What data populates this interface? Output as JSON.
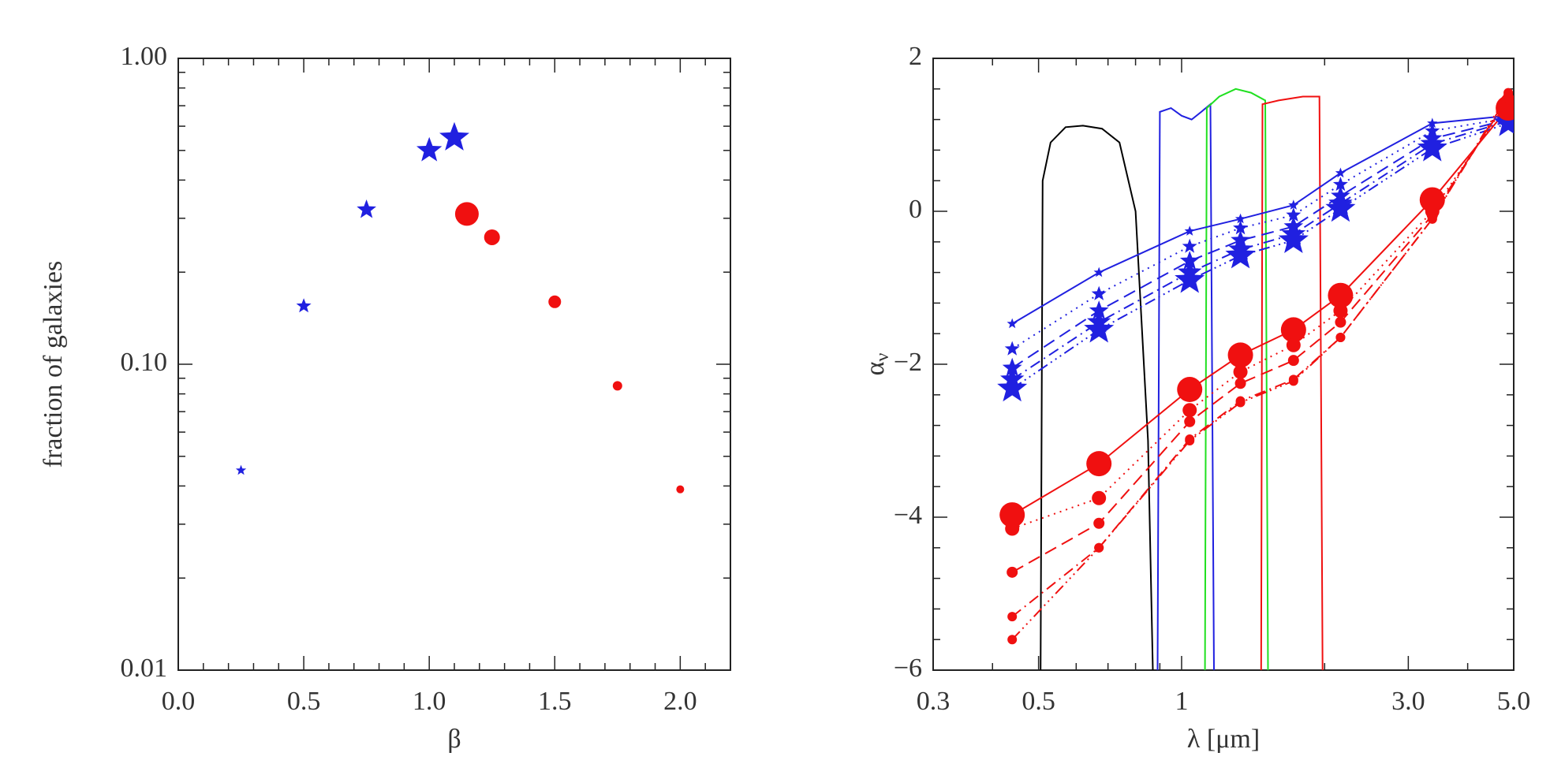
{
  "chart_data": [
    {
      "type": "scatter",
      "xlabel": "β",
      "ylabel": "fraction of galaxies",
      "xlim": [
        0,
        2.2
      ],
      "ylim": [
        0.01,
        1
      ],
      "ylog": true,
      "xticks": [
        {
          "value": 0,
          "label": "0.0"
        },
        {
          "value": 0.5,
          "label": "0.5"
        },
        {
          "value": 1,
          "label": "1.0"
        },
        {
          "value": 1.5,
          "label": "1.5"
        },
        {
          "value": 2,
          "label": "2.0"
        }
      ],
      "yticks": [
        {
          "value": 0.01,
          "label": "0.01"
        },
        {
          "value": 0.1,
          "label": "0.10"
        },
        {
          "value": 1,
          "label": "1.00"
        }
      ],
      "series": [
        {
          "color": "#2020e0",
          "marker": "star",
          "x": [
            0.25,
            0.5,
            0.75,
            1.0,
            1.1
          ],
          "values": [
            0.045,
            0.155,
            0.32,
            0.5,
            0.55
          ],
          "marker_sizes": [
            7,
            10,
            13,
            17,
            20
          ]
        },
        {
          "color": "#f01010",
          "marker": "circle",
          "x": [
            1.15,
            1.25,
            1.5,
            1.75,
            2.0
          ],
          "values": [
            0.31,
            0.26,
            0.16,
            0.085,
            0.039
          ],
          "marker_sizes": [
            15,
            10,
            8,
            6,
            5
          ]
        }
      ]
    },
    {
      "type": "line",
      "xlabel": "λ   [μm]",
      "ylabel": "α",
      "ylabel_sub": "ν",
      "xlim": [
        0.3,
        5.0
      ],
      "ylim": [
        -6,
        2
      ],
      "xlog": true,
      "xticks": [
        0.3,
        0.5,
        1,
        {
          "value": 3,
          "label": "3.0"
        },
        {
          "value": 5,
          "label": "5.0"
        }
      ],
      "yticks": [
        {
          "value": -6,
          "label": "−6"
        },
        {
          "value": -4,
          "label": "−4"
        },
        {
          "value": -2,
          "label": "−2"
        },
        0,
        2
      ],
      "x": [
        0.44,
        0.67,
        1.04,
        1.33,
        1.72,
        2.16,
        3.37,
        4.87
      ],
      "series": [
        {
          "color": "#2020e0",
          "marker": "star",
          "marker_size": 7,
          "dash": "solid",
          "values": [
            -1.47,
            -0.8,
            -0.26,
            -0.1,
            0.08,
            0.5,
            1.15,
            1.25
          ]
        },
        {
          "color": "#2020e0",
          "marker": "star",
          "marker_size": 10,
          "dash": "dotted",
          "values": [
            -1.8,
            -1.08,
            -0.46,
            -0.22,
            -0.05,
            0.35,
            1.05,
            1.22
          ]
        },
        {
          "color": "#2020e0",
          "marker": "star",
          "marker_size": 13,
          "dash": "dashed",
          "values": [
            -2.05,
            -1.3,
            -0.65,
            -0.38,
            -0.2,
            0.2,
            0.95,
            1.2
          ]
        },
        {
          "color": "#2020e0",
          "marker": "star",
          "marker_size": 16,
          "dash": "dashdot",
          "values": [
            -2.2,
            -1.45,
            -0.8,
            -0.5,
            -0.3,
            0.1,
            0.88,
            1.18
          ]
        },
        {
          "color": "#2020e0",
          "marker": "star",
          "marker_size": 20,
          "dash": "dashdotdot",
          "values": [
            -2.32,
            -1.55,
            -0.9,
            -0.58,
            -0.38,
            0.03,
            0.82,
            1.15
          ]
        },
        {
          "color": "#f01010",
          "marker": "circle",
          "marker_size": 16,
          "dash": "solid",
          "values": [
            -3.97,
            -3.3,
            -2.33,
            -1.88,
            -1.55,
            -1.1,
            0.15,
            1.35
          ]
        },
        {
          "color": "#f01010",
          "marker": "circle",
          "marker_size": 9,
          "dash": "dotted",
          "values": [
            -4.15,
            -3.75,
            -2.6,
            -2.1,
            -1.75,
            -1.3,
            0.0,
            1.45
          ]
        },
        {
          "color": "#f01010",
          "marker": "circle",
          "marker_size": 7,
          "dash": "dashed",
          "values": [
            -4.72,
            -4.08,
            -2.75,
            -2.25,
            -1.95,
            -1.45,
            -0.05,
            1.48
          ]
        },
        {
          "color": "#f01010",
          "marker": "circle",
          "marker_size": 6,
          "dash": "dashdot",
          "values": [
            -5.3,
            -4.4,
            -2.98,
            -2.48,
            -2.2,
            -1.65,
            -0.1,
            1.52
          ]
        },
        {
          "color": "#f01010",
          "marker": "circle",
          "marker_size": 6,
          "dash": "dashdotdot",
          "values": [
            -5.6,
            -4.4,
            -3.0,
            -2.5,
            -2.22,
            -1.65,
            -0.1,
            1.55
          ]
        }
      ],
      "filter_curves": [
        {
          "color": "#000000",
          "x": [
            0.505,
            0.51,
            0.53,
            0.57,
            0.62,
            0.68,
            0.74,
            0.8,
            0.85,
            0.87
          ],
          "values": [
            -6,
            0.4,
            0.9,
            1.1,
            1.12,
            1.08,
            0.9,
            0,
            -3,
            -6
          ]
        },
        {
          "color": "#2020e0",
          "x": [
            0.89,
            0.9,
            0.95,
            1.0,
            1.05,
            1.1,
            1.15,
            1.17
          ],
          "values": [
            -6,
            1.3,
            1.35,
            1.25,
            1.2,
            1.3,
            1.4,
            -6
          ]
        },
        {
          "color": "#20e020",
          "x": [
            1.12,
            1.13,
            1.2,
            1.3,
            1.4,
            1.5,
            1.52
          ],
          "values": [
            -6,
            1.35,
            1.5,
            1.6,
            1.55,
            1.45,
            -6
          ]
        },
        {
          "color": "#f01010",
          "x": [
            1.47,
            1.48,
            1.6,
            1.8,
            1.95,
            1.98
          ],
          "values": [
            -6,
            1.4,
            1.45,
            1.5,
            1.5,
            -6
          ]
        }
      ]
    }
  ]
}
